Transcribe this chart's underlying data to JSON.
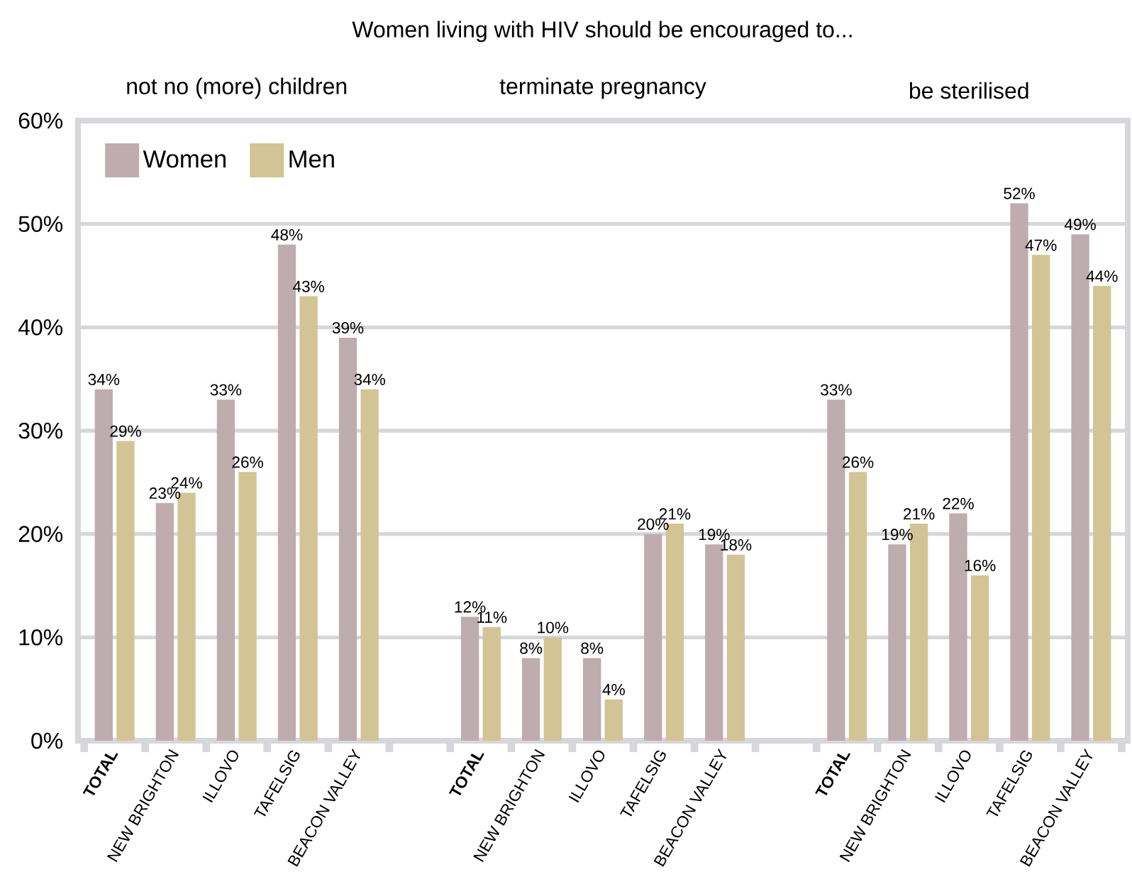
{
  "chart_data": {
    "type": "bar",
    "title": "Women living with HIV should be encouraged to...",
    "annotations": [
      "not no (more) children",
      "terminate pregnancy",
      "be sterilised"
    ],
    "categories": [
      "**TOTAL**",
      "NEW BRIGHTON",
      "ILLOVO",
      "TAFELSIG",
      "BEACON VALLEY",
      null,
      "**TOTAL**",
      "NEW BRIGHTON",
      "ILLOVO",
      "TAFELSIG",
      "BEACON VALLEY",
      null,
      "**TOTAL**",
      "NEW BRIGHTON",
      "ILLOVO",
      "TAFELSIG",
      "BEACON VALLEY"
    ],
    "series": [
      {
        "name": "Women",
        "color": "#bfacaf",
        "values": [
          34,
          23,
          33,
          48,
          39,
          null,
          12,
          8,
          8,
          20,
          19,
          null,
          33,
          19,
          22,
          52,
          49
        ],
        "value_labels": [
          "34%",
          "23%",
          "33%",
          "48%",
          "39%",
          null,
          "12%",
          "8%",
          "8%",
          "20%",
          "19%",
          null,
          "33%",
          "19%",
          "22%",
          "52%",
          "49%"
        ]
      },
      {
        "name": "Men",
        "color": "#d2c494",
        "values": [
          29,
          24,
          26,
          43,
          34,
          null,
          11,
          10,
          4,
          21,
          18,
          null,
          26,
          21,
          16,
          47,
          44
        ],
        "value_labels": [
          "29%",
          "24%",
          "26%",
          "43%",
          "34%",
          null,
          "11%",
          "10%",
          "4%",
          "21%",
          "18%",
          null,
          "26%",
          "21%",
          "16%",
          "47%",
          "44%"
        ]
      }
    ],
    "ylim": [
      0,
      60
    ],
    "yticks": [
      {
        "value": 0,
        "label": "0%"
      },
      {
        "value": 10,
        "label": "10%"
      },
      {
        "value": 20,
        "label": "20%"
      },
      {
        "value": 30,
        "label": "30%"
      },
      {
        "value": 40,
        "label": "40%"
      },
      {
        "value": 50,
        "label": "50%"
      },
      {
        "value": 60,
        "label": "60%"
      }
    ],
    "grid": "y",
    "legend": "top left"
  }
}
